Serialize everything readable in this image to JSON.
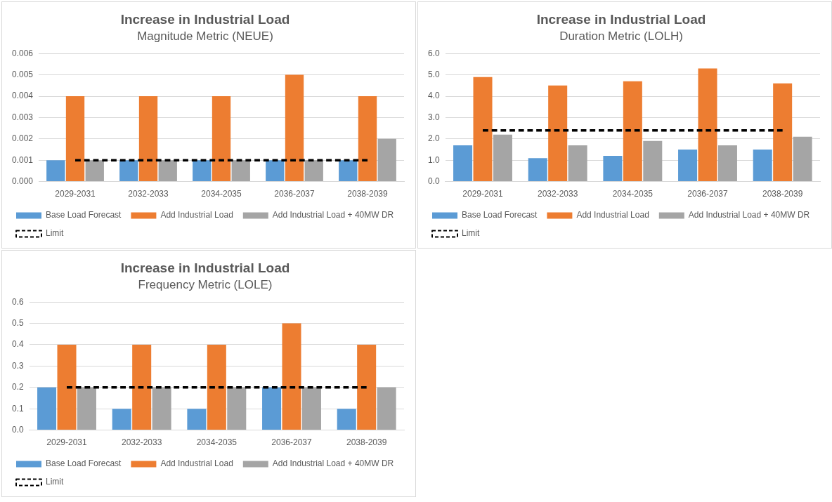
{
  "chart_data": [
    {
      "type": "bar",
      "title": "Increase in Industrial Load",
      "subtitle": "Magnitude Metric (NEUE)",
      "categories": [
        "2029-2031",
        "2032-2033",
        "2034-2035",
        "2036-2037",
        "2038-2039"
      ],
      "series": [
        {
          "name": "Base Load Forecast",
          "color": "#5b9bd5",
          "values": [
            0.001,
            0.001,
            0.001,
            0.001,
            0.001
          ]
        },
        {
          "name": "Add Industrial Load",
          "color": "#ed7d31",
          "values": [
            0.004,
            0.004,
            0.004,
            0.005,
            0.004
          ]
        },
        {
          "name": "Add Industrial Load + 40MW DR",
          "color": "#a5a5a5",
          "values": [
            0.001,
            0.001,
            0.001,
            0.001,
            0.002
          ]
        },
        {
          "name": "Limit",
          "type": "line",
          "color": "#000000",
          "line_style": "dashed",
          "marker": "none",
          "values": [
            0.001,
            0.001,
            0.001,
            0.001,
            0.001
          ]
        }
      ],
      "ylim": [
        0,
        0.006
      ],
      "yticks": [
        {
          "value": 0,
          "label": "0.000"
        },
        0.001,
        0.002,
        0.003,
        0.004,
        0.005,
        0.006
      ],
      "grid": "y",
      "legend": "bottom"
    },
    {
      "type": "bar",
      "title": "Increase in Industrial Load",
      "subtitle": "Duration Metric (LOLH)",
      "categories": [
        "2029-2031",
        "2032-2033",
        "2034-2035",
        "2036-2037",
        "2038-2039"
      ],
      "series": [
        {
          "name": "Base Load Forecast",
          "color": "#5b9bd5",
          "values": [
            1.7,
            1.1,
            1.2,
            1.5,
            1.5
          ]
        },
        {
          "name": "Add Industrial Load",
          "color": "#ed7d31",
          "values": [
            4.9,
            4.5,
            4.7,
            5.3,
            4.6
          ]
        },
        {
          "name": "Add Industrial Load + 40MW DR",
          "color": "#a5a5a5",
          "values": [
            2.2,
            1.7,
            1.9,
            1.7,
            2.1
          ]
        },
        {
          "name": "Limit",
          "type": "line",
          "color": "#000000",
          "line_style": "dashed",
          "marker": "none",
          "values": [
            2.4,
            2.4,
            2.4,
            2.4,
            2.4
          ]
        }
      ],
      "ylim": [
        0,
        6
      ],
      "yticks": [
        {
          "value": 0,
          "label": "0.0"
        },
        {
          "value": 1,
          "label": "1.0"
        },
        {
          "value": 2,
          "label": "2.0"
        },
        {
          "value": 3,
          "label": "3.0"
        },
        {
          "value": 4,
          "label": "4.0"
        },
        {
          "value": 5,
          "label": "5.0"
        },
        {
          "value": 6,
          "label": "6.0"
        }
      ],
      "grid": "y",
      "legend": "bottom"
    },
    {
      "type": "bar",
      "title": "Increase in Industrial Load",
      "subtitle": "Frequency Metric (LOLE)",
      "categories": [
        "2029-2031",
        "2032-2033",
        "2034-2035",
        "2036-2037",
        "2038-2039"
      ],
      "series": [
        {
          "name": "Base Load Forecast",
          "color": "#5b9bd5",
          "values": [
            0.2,
            0.1,
            0.1,
            0.2,
            0.1
          ]
        },
        {
          "name": "Add Industrial Load",
          "color": "#ed7d31",
          "values": [
            0.4,
            0.4,
            0.4,
            0.5,
            0.4
          ]
        },
        {
          "name": "Add Industrial Load + 40MW DR",
          "color": "#a5a5a5",
          "values": [
            0.2,
            0.2,
            0.2,
            0.2,
            0.2
          ]
        },
        {
          "name": "Limit",
          "type": "line",
          "color": "#000000",
          "line_style": "dashed",
          "marker": "none",
          "values": [
            0.2,
            0.2,
            0.2,
            0.2,
            0.2
          ]
        }
      ],
      "ylim": [
        0,
        0.6
      ],
      "yticks": [
        {
          "value": 0,
          "label": "0.0"
        },
        0.1,
        0.2,
        0.3,
        0.4,
        0.5,
        0.6
      ],
      "grid": "y",
      "legend": "bottom"
    }
  ]
}
